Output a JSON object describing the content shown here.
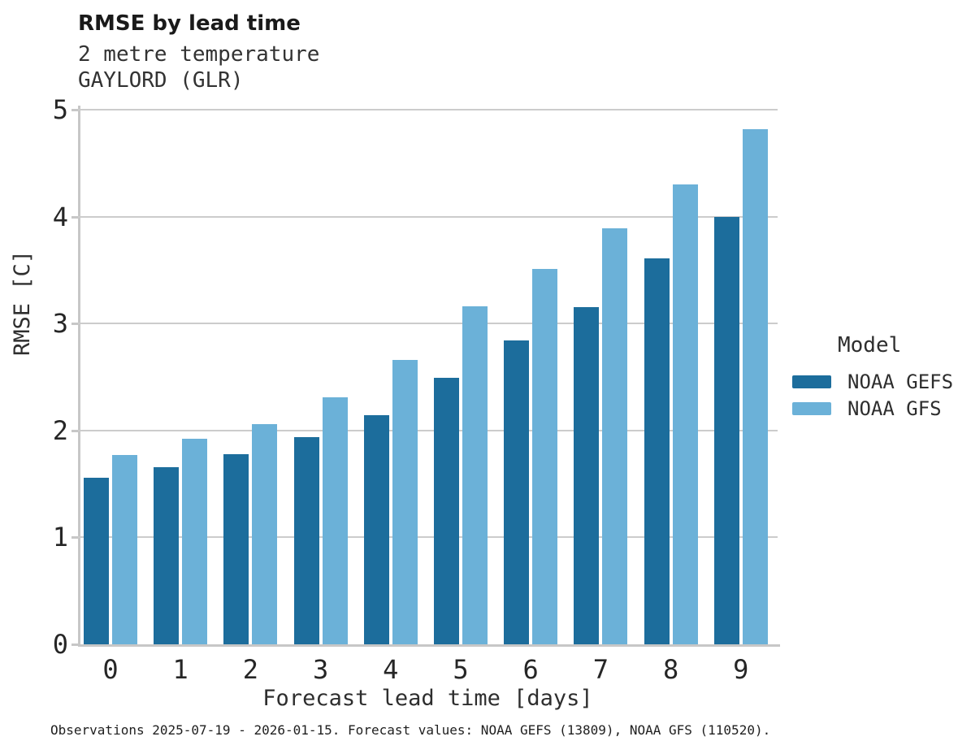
{
  "header": {
    "title": "RMSE by lead time",
    "subtitle_line1": "2 metre temperature",
    "subtitle_line2": "GAYLORD (GLR)"
  },
  "axes": {
    "x_label": "Forecast lead time [days]",
    "y_label": "RMSE [C]",
    "y_ticks": [
      "0",
      "1",
      "2",
      "3",
      "4",
      "5"
    ],
    "x_ticks": [
      "0",
      "1",
      "2",
      "3",
      "4",
      "5",
      "6",
      "7",
      "8",
      "9"
    ]
  },
  "legend": {
    "title": "Model",
    "entries": [
      {
        "label": "NOAA GEFS",
        "color": "#1c6d9c"
      },
      {
        "label": "NOAA GFS",
        "color": "#6bb1d8"
      }
    ]
  },
  "footer": {
    "caption": "Observations 2025-07-19 - 2026-01-15. Forecast values: NOAA GEFS (13809), NOAA GFS (110520)."
  },
  "colors": {
    "series_dark": "#1c6d9c",
    "series_light": "#6bb1d8",
    "gridline": "#cccccc",
    "axis_spine": "#c7c7c7",
    "background": "#ffffff",
    "text": "#2e2e2e"
  },
  "chart_data": {
    "type": "bar",
    "title": "RMSE by lead time",
    "subtitle": [
      "2 metre temperature",
      "GAYLORD (GLR)"
    ],
    "categories": [
      0,
      1,
      2,
      3,
      4,
      5,
      6,
      7,
      8,
      9
    ],
    "series": [
      {
        "name": "NOAA GEFS",
        "color": "#1c6d9c",
        "values": [
          1.56,
          1.66,
          1.78,
          1.94,
          2.14,
          2.49,
          2.84,
          3.15,
          3.61,
          4.0
        ]
      },
      {
        "name": "NOAA GFS",
        "color": "#6bb1d8",
        "values": [
          1.77,
          1.92,
          2.06,
          2.31,
          2.66,
          3.16,
          3.51,
          3.89,
          4.3,
          4.82
        ]
      }
    ],
    "xlabel": "Forecast lead time [days]",
    "ylabel": "RMSE [C]",
    "ylim": [
      0,
      5
    ],
    "y_tick_step": 1,
    "grid": true,
    "legend_title": "Model",
    "legend_position": "right",
    "caption": "Observations 2025-07-19 - 2026-01-15. Forecast values: NOAA GEFS (13809), NOAA GFS (110520)."
  }
}
